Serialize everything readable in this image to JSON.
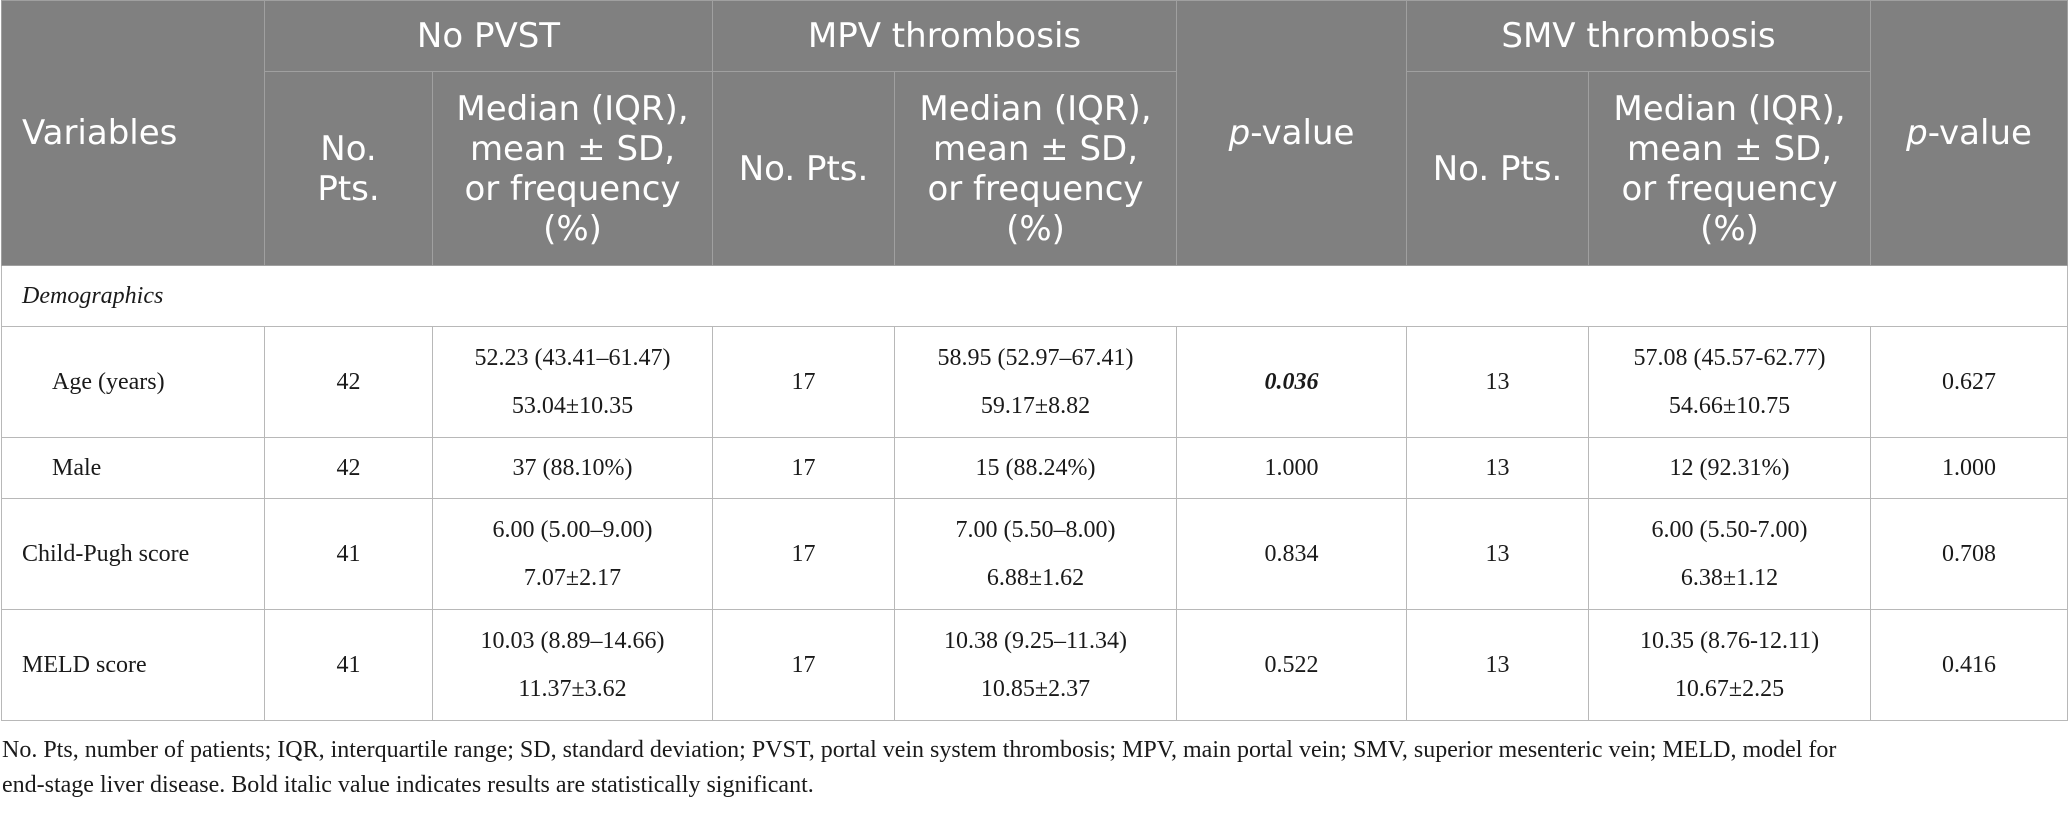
{
  "header": {
    "variables": "Variables",
    "no_pvst": "No PVST",
    "mpv": "MPV thrombosis",
    "smv": "SMV thrombosis",
    "p_italic": "p",
    "p_rest": "-value",
    "no_pts_split": [
      "No.",
      "Pts."
    ],
    "no_pts": "No. Pts.",
    "stat_lines": [
      "Median (IQR),",
      "mean ± SD,",
      "or frequency",
      "(%)"
    ]
  },
  "sections": [
    {
      "title": "Demographics",
      "rows": [
        {
          "label": "Age (years)",
          "nopvst_n": "42",
          "nopvst_stat": [
            "52.23 (43.41–61.47)",
            "53.04±10.35"
          ],
          "mpv_n": "17",
          "mpv_stat": [
            "58.95 (52.97–67.41)",
            "59.17±8.82"
          ],
          "p1": "0.036",
          "smv_n": "13",
          "smv_stat": [
            "57.08 (45.57-62.77)",
            "54.66±10.75"
          ],
          "p2": "0.627"
        },
        {
          "label": "Male",
          "nopvst_n": "42",
          "nopvst_stat": [
            "37 (88.10%)"
          ],
          "mpv_n": "17",
          "mpv_stat": [
            "15 (88.24%)"
          ],
          "p1": "1.000",
          "smv_n": "13",
          "smv_stat": [
            "12 (92.31%)"
          ],
          "p2": "1.000"
        },
        {
          "label": "Child-Pugh score",
          "nopvst_n": "41",
          "nopvst_stat": [
            "6.00 (5.00–9.00)",
            "7.07±2.17"
          ],
          "mpv_n": "17",
          "mpv_stat": [
            "7.00 (5.50–8.00)",
            "6.88±1.62"
          ],
          "p1": "0.834",
          "smv_n": "13",
          "smv_stat": [
            "6.00 (5.50-7.00)",
            "6.38±1.12"
          ],
          "p2": "0.708"
        },
        {
          "label": "MELD score",
          "nopvst_n": "41",
          "nopvst_stat": [
            "10.03 (8.89–14.66)",
            "11.37±3.62"
          ],
          "mpv_n": "17",
          "mpv_stat": [
            "10.38 (9.25–11.34)",
            "10.85±2.37"
          ],
          "p1": "0.522",
          "smv_n": "13",
          "smv_stat": [
            "10.35 (8.76-12.11)",
            "10.67±2.25"
          ],
          "p2": "0.416"
        }
      ]
    }
  ],
  "footnote": {
    "line1": "No. Pts, number of patients; IQR, interquartile range; SD, standard deviation; PVST, portal vein system thrombosis; MPV, main portal vein; SMV, superior mesenteric vein; MELD, model for",
    "line2": "end-stage liver disease. Bold italic value indicates results are statistically significant."
  }
}
